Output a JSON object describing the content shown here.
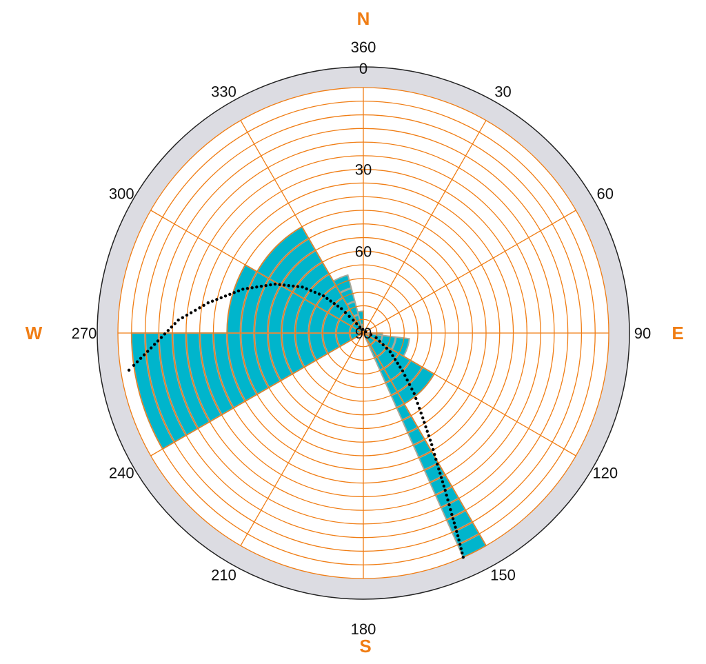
{
  "chart_data": {
    "type": "polar-sun-path",
    "cardinals": {
      "north": "N",
      "east": "E",
      "south": "S",
      "west": "W"
    },
    "azimuth_labels": [
      {
        "angle": 0,
        "text": "360"
      },
      {
        "angle": 30,
        "text": "30"
      },
      {
        "angle": 60,
        "text": "60"
      },
      {
        "angle": 90,
        "text": "90"
      },
      {
        "angle": 120,
        "text": "120"
      },
      {
        "angle": 150,
        "text": "150"
      },
      {
        "angle": 180,
        "text": "180"
      },
      {
        "angle": 210,
        "text": "210"
      },
      {
        "angle": 240,
        "text": "240"
      },
      {
        "angle": 270,
        "text": "270"
      },
      {
        "angle": 300,
        "text": "300"
      },
      {
        "angle": 330,
        "text": "330"
      }
    ],
    "elevation_labels": [
      {
        "elevation": 0,
        "text": "0"
      },
      {
        "elevation": 30,
        "text": "30"
      },
      {
        "elevation": 60,
        "text": "60"
      },
      {
        "elevation": 90,
        "text": "90"
      }
    ],
    "elevation_range": [
      0,
      90
    ],
    "ring_step_deg": 5,
    "sector_step_deg": 30,
    "colors": {
      "grid": "#f07d14",
      "outer_ring": "#dcdce2",
      "sector_fill": "#00b5cc",
      "sector_ring": "#a8a89a",
      "path": "#000000",
      "cardinal": "#f07d14"
    },
    "obstruction_sectors": [
      {
        "az_start": 90,
        "az_end": 97,
        "min_elevation": 83
      },
      {
        "az_start": 97,
        "az_end": 120,
        "min_elevation": 73
      },
      {
        "az_start": 120,
        "az_end": 150,
        "min_elevation": 60
      },
      {
        "az_start": 150,
        "az_end": 156,
        "min_elevation": 0
      },
      {
        "az_start": 240,
        "az_end": 270,
        "min_elevation": 5
      },
      {
        "az_start": 270,
        "az_end": 300,
        "min_elevation": 40
      },
      {
        "az_start": 300,
        "az_end": 330,
        "min_elevation": 45
      },
      {
        "az_start": 330,
        "az_end": 345,
        "min_elevation": 68
      },
      {
        "az_start": 345,
        "az_end": 360,
        "min_elevation": 82
      }
    ],
    "sun_path": [
      {
        "azimuth": 156,
        "elevation": 0
      },
      {
        "azimuth": 155,
        "elevation": 8
      },
      {
        "azimuth": 154,
        "elevation": 16
      },
      {
        "azimuth": 152.5,
        "elevation": 25
      },
      {
        "azimuth": 151,
        "elevation": 33
      },
      {
        "azimuth": 148.5,
        "elevation": 42
      },
      {
        "azimuth": 145,
        "elevation": 52
      },
      {
        "azimuth": 140,
        "elevation": 61
      },
      {
        "azimuth": 134,
        "elevation": 70
      },
      {
        "azimuth": 125,
        "elevation": 78
      },
      {
        "azimuth": 110,
        "elevation": 85
      },
      {
        "azimuth": 60,
        "elevation": 89
      },
      {
        "azimuth": 330,
        "elevation": 87.5
      },
      {
        "azimuth": 322,
        "elevation": 84
      },
      {
        "azimuth": 318,
        "elevation": 78
      },
      {
        "azimuth": 313,
        "elevation": 70
      },
      {
        "azimuth": 307,
        "elevation": 62
      },
      {
        "azimuth": 299,
        "elevation": 53
      },
      {
        "azimuth": 290,
        "elevation": 43
      },
      {
        "azimuth": 281,
        "elevation": 32
      },
      {
        "azimuth": 274,
        "elevation": 22
      },
      {
        "azimuth": 266,
        "elevation": 12
      },
      {
        "azimuth": 262,
        "elevation": 5
      },
      {
        "azimuth": 261,
        "elevation": 3
      }
    ]
  }
}
